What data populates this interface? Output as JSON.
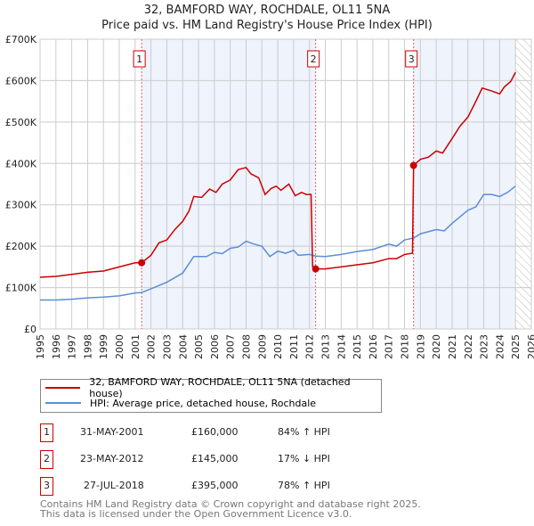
{
  "chart_data": {
    "type": "line",
    "title": "32, BAMFORD WAY, ROCHDALE, OL11 5NA",
    "subtitle": "Price paid vs. HM Land Registry's House Price Index (HPI)",
    "xlim": [
      1995,
      2026
    ],
    "ylim": [
      0,
      700000
    ],
    "x_ticks": [
      "1995",
      "1996",
      "1997",
      "1998",
      "1999",
      "2000",
      "2001",
      "2002",
      "2003",
      "2004",
      "2005",
      "2006",
      "2007",
      "2008",
      "2009",
      "2010",
      "2011",
      "2012",
      "2013",
      "2014",
      "2015",
      "2016",
      "2017",
      "2018",
      "2019",
      "2020",
      "2021",
      "2022",
      "2023",
      "2024",
      "2025",
      "2026"
    ],
    "y_ticks": [
      {
        "v": 0,
        "l": "£0"
      },
      {
        "v": 100000,
        "l": "£100K"
      },
      {
        "v": 200000,
        "l": "£200K"
      },
      {
        "v": 300000,
        "l": "£300K"
      },
      {
        "v": 400000,
        "l": "£400K"
      },
      {
        "v": 500000,
        "l": "£500K"
      },
      {
        "v": 600000,
        "l": "£600K"
      },
      {
        "v": 700000,
        "l": "£700K"
      }
    ],
    "grid": true,
    "colors": {
      "property": "#cc0000",
      "hpi": "#5b8ed6",
      "shade": "#eef3fc"
    },
    "hatch_from": 2025.0,
    "series": [
      {
        "name": "32, BAMFORD WAY, ROCHDALE, OL11 5NA (detached house)",
        "color": "#cc0000",
        "x": [
          1995,
          1996,
          1997,
          1998,
          1999,
          2000,
          2001,
          2001.41,
          2002,
          2002.5,
          2003,
          2003.5,
          2004,
          2004.4,
          2004.7,
          2005.2,
          2005.7,
          2006.1,
          2006.5,
          2007,
          2007.5,
          2008,
          2008.3,
          2008.8,
          2009.2,
          2009.6,
          2009.9,
          2010.2,
          2010.7,
          2011.1,
          2011.5,
          2011.8,
          2012.1,
          2012.2,
          2012.39,
          2013,
          2014,
          2015,
          2016,
          2017,
          2017.5,
          2018,
          2018.5,
          2018.57,
          2019,
          2019.5,
          2020,
          2020.4,
          2021,
          2021.5,
          2022,
          2022.5,
          2022.9,
          2023.5,
          2024,
          2024.3,
          2024.7,
          2025
        ],
        "y": [
          125000,
          127000,
          132000,
          137000,
          140000,
          150000,
          160000,
          160000,
          178000,
          208000,
          215000,
          240000,
          260000,
          285000,
          320000,
          318000,
          338000,
          330000,
          350000,
          360000,
          385000,
          390000,
          375000,
          365000,
          325000,
          340000,
          345000,
          335000,
          350000,
          322000,
          330000,
          325000,
          325000,
          150000,
          145000,
          145000,
          150000,
          155000,
          160000,
          170000,
          170000,
          180000,
          183000,
          395000,
          410000,
          415000,
          430000,
          425000,
          460000,
          490000,
          512000,
          550000,
          582000,
          575000,
          568000,
          585000,
          598000,
          620000
        ]
      },
      {
        "name": "HPI: Average price, detached house, Rochdale",
        "color": "#5b8ed6",
        "x": [
          1995,
          1996,
          1997,
          1998,
          1999,
          2000,
          2001,
          2001.41,
          2002,
          2003,
          2004,
          2004.7,
          2005.5,
          2006,
          2006.5,
          2007,
          2007.5,
          2008,
          2008.5,
          2009,
          2009.5,
          2010,
          2010.5,
          2011,
          2011.3,
          2012,
          2012.4,
          2013,
          2014,
          2015,
          2016,
          2017,
          2017.5,
          2018,
          2018.6,
          2019,
          2020,
          2020.5,
          2021,
          2022,
          2022.5,
          2023,
          2023.5,
          2024,
          2024.5,
          2025
        ],
        "y": [
          70000,
          70000,
          72000,
          75000,
          77000,
          80000,
          87000,
          88000,
          97000,
          113000,
          135000,
          175000,
          175000,
          185000,
          182000,
          195000,
          198000,
          212000,
          205000,
          200000,
          175000,
          188000,
          183000,
          190000,
          178000,
          180000,
          176000,
          175000,
          180000,
          187000,
          192000,
          205000,
          200000,
          215000,
          220000,
          230000,
          240000,
          237000,
          255000,
          287000,
          295000,
          325000,
          325000,
          320000,
          330000,
          345000
        ]
      }
    ],
    "sales": [
      {
        "id": "1",
        "x": 2001.41,
        "price": 160000,
        "date": "31-MAY-2001",
        "price_label": "£160,000",
        "hpi": "84% ↑ HPI"
      },
      {
        "id": "2",
        "x": 2012.39,
        "price": 145000,
        "date": "23-MAY-2012",
        "price_label": "£145,000",
        "hpi": "17% ↓ HPI"
      },
      {
        "id": "3",
        "x": 2018.57,
        "price": 395000,
        "date": "27-JUL-2018",
        "price_label": "£395,000",
        "hpi": "78% ↑ HPI"
      }
    ]
  },
  "footer": {
    "line1": "Contains HM Land Registry data © Crown copyright and database right 2025.",
    "line2": "This data is licensed under the Open Government Licence v3.0."
  }
}
